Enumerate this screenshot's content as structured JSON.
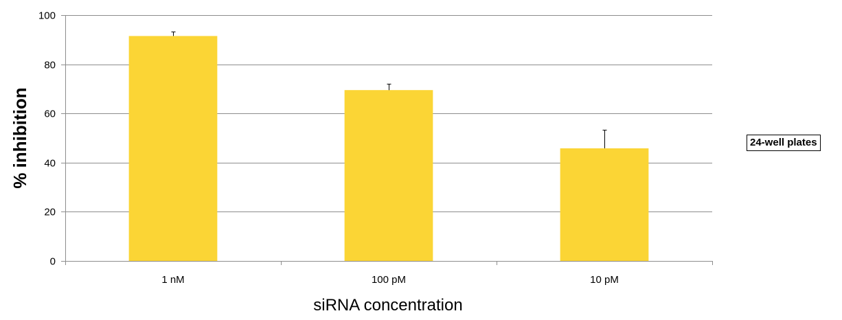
{
  "chart_data": {
    "type": "bar",
    "categories": [
      "1 nM",
      "100 pM",
      "10 pM"
    ],
    "series": [
      {
        "name": "24-well plates",
        "values": [
          91.5,
          69.5,
          45.8
        ],
        "error_plus": [
          1.8,
          2.5,
          7.5
        ],
        "color": "#FBD535"
      }
    ],
    "title": "",
    "xlabel": "siRNA concentration",
    "ylabel": "% inhibition",
    "ylim": [
      0,
      100
    ],
    "yticks": [
      0,
      20,
      40,
      60,
      80,
      100
    ],
    "grid": true,
    "legend_position": "right"
  }
}
